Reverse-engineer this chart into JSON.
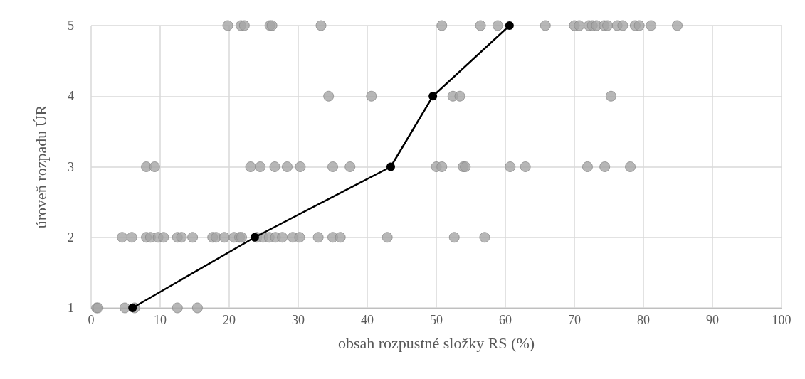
{
  "chart_data": {
    "type": "scatter",
    "xlabel": "obsah rozpustné složky RS (%)",
    "ylabel": "úroveň rozpadu ÚR",
    "xlim": [
      0,
      100
    ],
    "xticks": [
      0,
      10,
      20,
      30,
      40,
      50,
      60,
      70,
      80,
      90,
      100
    ],
    "ylim": [
      1,
      5
    ],
    "yticks": [
      1,
      2,
      3,
      4,
      5
    ],
    "grid": true,
    "marker": "circle",
    "series": [
      {
        "color": "#a5a5a5",
        "x": [
          19.8,
          21.7,
          22.2,
          25.9,
          26.2,
          33.3,
          50.8,
          56.4,
          58.9,
          65.8,
          70.0,
          70.7,
          72.1,
          72.6,
          73.2,
          74.3,
          74.8,
          76.2,
          77.0,
          78.8,
          79.4,
          81.1,
          84.9,
          34.4,
          40.6,
          52.4,
          53.4,
          75.3,
          8.0,
          9.2,
          23.1,
          24.5,
          26.6,
          28.4,
          30.3,
          35.0,
          37.5,
          50.0,
          50.8,
          53.9,
          54.2,
          60.7,
          62.9,
          71.9,
          74.4,
          78.1,
          4.5,
          5.9,
          8.0,
          8.6,
          9.7,
          10.5,
          12.5,
          13.1,
          14.7,
          17.6,
          18.1,
          19.3,
          20.7,
          21.5,
          21.8,
          24.0,
          24.9,
          25.8,
          26.7,
          27.7,
          29.2,
          30.2,
          32.9,
          35.0,
          36.1,
          42.9,
          52.6,
          57.0,
          0.8,
          1.0,
          4.9,
          6.3,
          12.5,
          15.4
        ],
        "values": [
          5,
          5,
          5,
          5,
          5,
          5,
          5,
          5,
          5,
          5,
          5,
          5,
          5,
          5,
          5,
          5,
          5,
          5,
          5,
          5,
          5,
          5,
          5,
          4,
          4,
          4,
          4,
          4,
          3,
          3,
          3,
          3,
          3,
          3,
          3,
          3,
          3,
          3,
          3,
          3,
          3,
          3,
          3,
          3,
          3,
          3,
          2,
          2,
          2,
          2,
          2,
          2,
          2,
          2,
          2,
          2,
          2,
          2,
          2,
          2,
          2,
          2,
          2,
          2,
          2,
          2,
          2,
          2,
          2,
          2,
          2,
          2,
          2,
          2,
          1,
          1,
          1,
          1,
          1,
          1
        ]
      },
      {
        "type": "line",
        "color": "#000000",
        "line_style": "solid",
        "x": [
          6.0,
          23.7,
          43.4,
          49.5,
          60.6
        ],
        "values": [
          1,
          2,
          3,
          4,
          5
        ]
      }
    ]
  }
}
